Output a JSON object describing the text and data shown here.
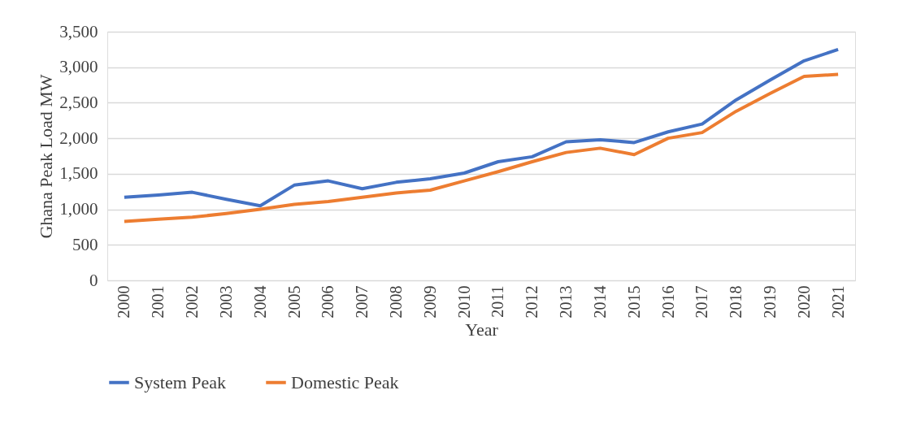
{
  "chart_data": {
    "type": "line",
    "xlabel": "Year",
    "ylabel": "Ghana Peak Load MW",
    "categories": [
      "2000",
      "2001",
      "2002",
      "2003",
      "2004",
      "2005",
      "2006",
      "2007",
      "2008",
      "2009",
      "2010",
      "2011",
      "2012",
      "2013",
      "2014",
      "2015",
      "2016",
      "2017",
      "2018",
      "2019",
      "2020",
      "2021"
    ],
    "series": [
      {
        "name": "System Peak",
        "color": "#4472c4",
        "values": [
          1170,
          1200,
          1240,
          1140,
          1050,
          1340,
          1400,
          1290,
          1380,
          1430,
          1510,
          1670,
          1740,
          1950,
          1980,
          1940,
          2090,
          2200,
          2540,
          2820,
          3090,
          3250
        ]
      },
      {
        "name": "Domestic Peak",
        "color": "#ed7d31",
        "values": [
          830,
          860,
          890,
          940,
          1000,
          1070,
          1110,
          1170,
          1230,
          1270,
          1400,
          1530,
          1670,
          1800,
          1860,
          1770,
          2000,
          2080,
          2380,
          2630,
          2870,
          2900
        ]
      }
    ],
    "ylim": [
      0,
      3500
    ],
    "yticks": [
      0,
      500,
      {
        "value": 1000,
        "label": "1,000"
      },
      {
        "value": 1500,
        "label": "1,500"
      },
      {
        "value": 2000,
        "label": "2,000"
      },
      {
        "value": 2500,
        "label": "2,500"
      },
      {
        "value": 3000,
        "label": "3,000"
      },
      {
        "value": 3500,
        "label": "3,500"
      }
    ],
    "grid": "y",
    "legend": "bottom",
    "marker": "none",
    "line_style": "solid"
  }
}
